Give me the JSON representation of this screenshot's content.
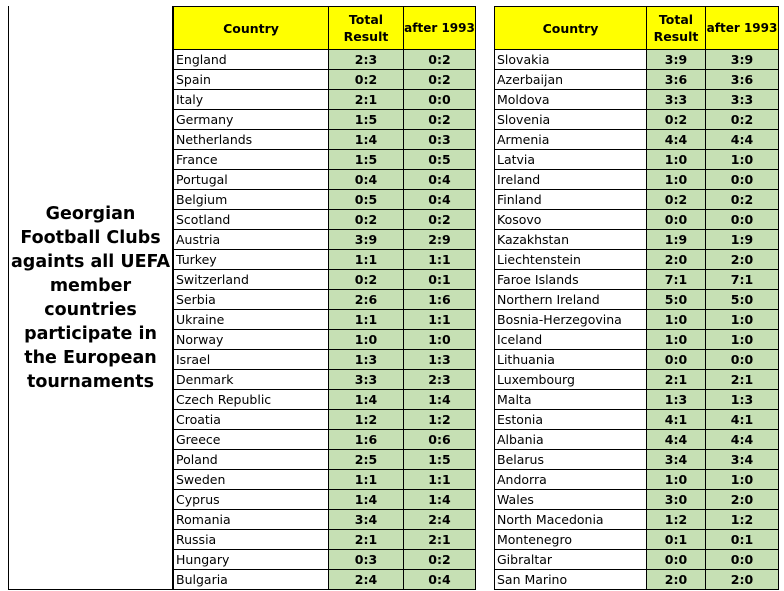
{
  "caption": "Georgian Football Clubs againts all UEFA member countries participate in the European tournaments",
  "headers": {
    "country": "Country",
    "total": "Total Result",
    "after": "after 1993"
  },
  "left_rows": [
    {
      "country": "England",
      "total": "2:3",
      "after": "0:2"
    },
    {
      "country": "Spain",
      "total": "0:2",
      "after": "0:2"
    },
    {
      "country": "Italy",
      "total": "2:1",
      "after": "0:0"
    },
    {
      "country": "Germany",
      "total": "1:5",
      "after": "0:2"
    },
    {
      "country": "Netherlands",
      "total": "1:4",
      "after": "0:3"
    },
    {
      "country": "France",
      "total": "1:5",
      "after": "0:5"
    },
    {
      "country": "Portugal",
      "total": "0:4",
      "after": "0:4"
    },
    {
      "country": "Belgium",
      "total": "0:5",
      "after": "0:4"
    },
    {
      "country": "Scotland",
      "total": "0:2",
      "after": "0:2"
    },
    {
      "country": "Austria",
      "total": "3:9",
      "after": "2:9"
    },
    {
      "country": "Turkey",
      "total": "1:1",
      "after": "1:1"
    },
    {
      "country": "Switzerland",
      "total": "0:2",
      "after": "0:1"
    },
    {
      "country": "Serbia",
      "total": "2:6",
      "after": "1:6"
    },
    {
      "country": "Ukraine",
      "total": "1:1",
      "after": "1:1"
    },
    {
      "country": "Norway",
      "total": "1:0",
      "after": "1:0"
    },
    {
      "country": "Israel",
      "total": "1:3",
      "after": "1:3"
    },
    {
      "country": "Denmark",
      "total": "3:3",
      "after": "2:3"
    },
    {
      "country": "Czech Republic",
      "total": "1:4",
      "after": "1:4"
    },
    {
      "country": "Croatia",
      "total": "1:2",
      "after": "1:2"
    },
    {
      "country": "Greece",
      "total": "1:6",
      "after": "0:6"
    },
    {
      "country": "Poland",
      "total": "2:5",
      "after": "1:5"
    },
    {
      "country": "Sweden",
      "total": "1:1",
      "after": "1:1"
    },
    {
      "country": "Cyprus",
      "total": "1:4",
      "after": "1:4"
    },
    {
      "country": "Romania",
      "total": "3:4",
      "after": "2:4"
    },
    {
      "country": "Russia",
      "total": "2:1",
      "after": "2:1"
    },
    {
      "country": "Hungary",
      "total": "0:3",
      "after": "0:2"
    },
    {
      "country": "Bulgaria",
      "total": "2:4",
      "after": "0:4"
    }
  ],
  "right_rows": [
    {
      "country": "Slovakia",
      "total": "3:9",
      "after": "3:9"
    },
    {
      "country": "Azerbaijan",
      "total": "3:6",
      "after": "3:6"
    },
    {
      "country": "Moldova",
      "total": "3:3",
      "after": "3:3"
    },
    {
      "country": "Slovenia",
      "total": "0:2",
      "after": "0:2"
    },
    {
      "country": "Armenia",
      "total": "4:4",
      "after": "4:4"
    },
    {
      "country": "Latvia",
      "total": "1:0",
      "after": "1:0"
    },
    {
      "country": "Ireland",
      "total": "1:0",
      "after": "0:0"
    },
    {
      "country": "Finland",
      "total": "0:2",
      "after": "0:2"
    },
    {
      "country": "Kosovo",
      "total": "0:0",
      "after": "0:0"
    },
    {
      "country": "Kazakhstan",
      "total": "1:9",
      "after": "1:9"
    },
    {
      "country": "Liechtenstein",
      "total": "2:0",
      "after": "2:0"
    },
    {
      "country": "Faroe Islands",
      "total": "7:1",
      "after": "7:1"
    },
    {
      "country": "Northern Ireland",
      "total": "5:0",
      "after": "5:0"
    },
    {
      "country": "Bosnia-Herzegovina",
      "total": "1:0",
      "after": "1:0"
    },
    {
      "country": "Iceland",
      "total": "1:0",
      "after": "1:0"
    },
    {
      "country": "Lithuania",
      "total": "0:0",
      "after": "0:0"
    },
    {
      "country": "Luxembourg",
      "total": "2:1",
      "after": "2:1"
    },
    {
      "country": "Malta",
      "total": "1:3",
      "after": "1:3"
    },
    {
      "country": "Estonia",
      "total": "4:1",
      "after": "4:1"
    },
    {
      "country": "Albania",
      "total": "4:4",
      "after": "4:4"
    },
    {
      "country": "Belarus",
      "total": "3:4",
      "after": "3:4"
    },
    {
      "country": "Andorra",
      "total": "1:0",
      "after": "1:0"
    },
    {
      "country": "Wales",
      "total": "3:0",
      "after": "2:0"
    },
    {
      "country": "North Macedonia",
      "total": "1:2",
      "after": "1:2"
    },
    {
      "country": "Montenegro",
      "total": "0:1",
      "after": "0:1"
    },
    {
      "country": "Gibraltar",
      "total": "0:0",
      "after": "0:0"
    },
    {
      "country": "San Marino",
      "total": "2:0",
      "after": "2:0"
    }
  ],
  "colors": {
    "header_bg": "#ffff00",
    "score_bg": "#c6e0b4"
  }
}
